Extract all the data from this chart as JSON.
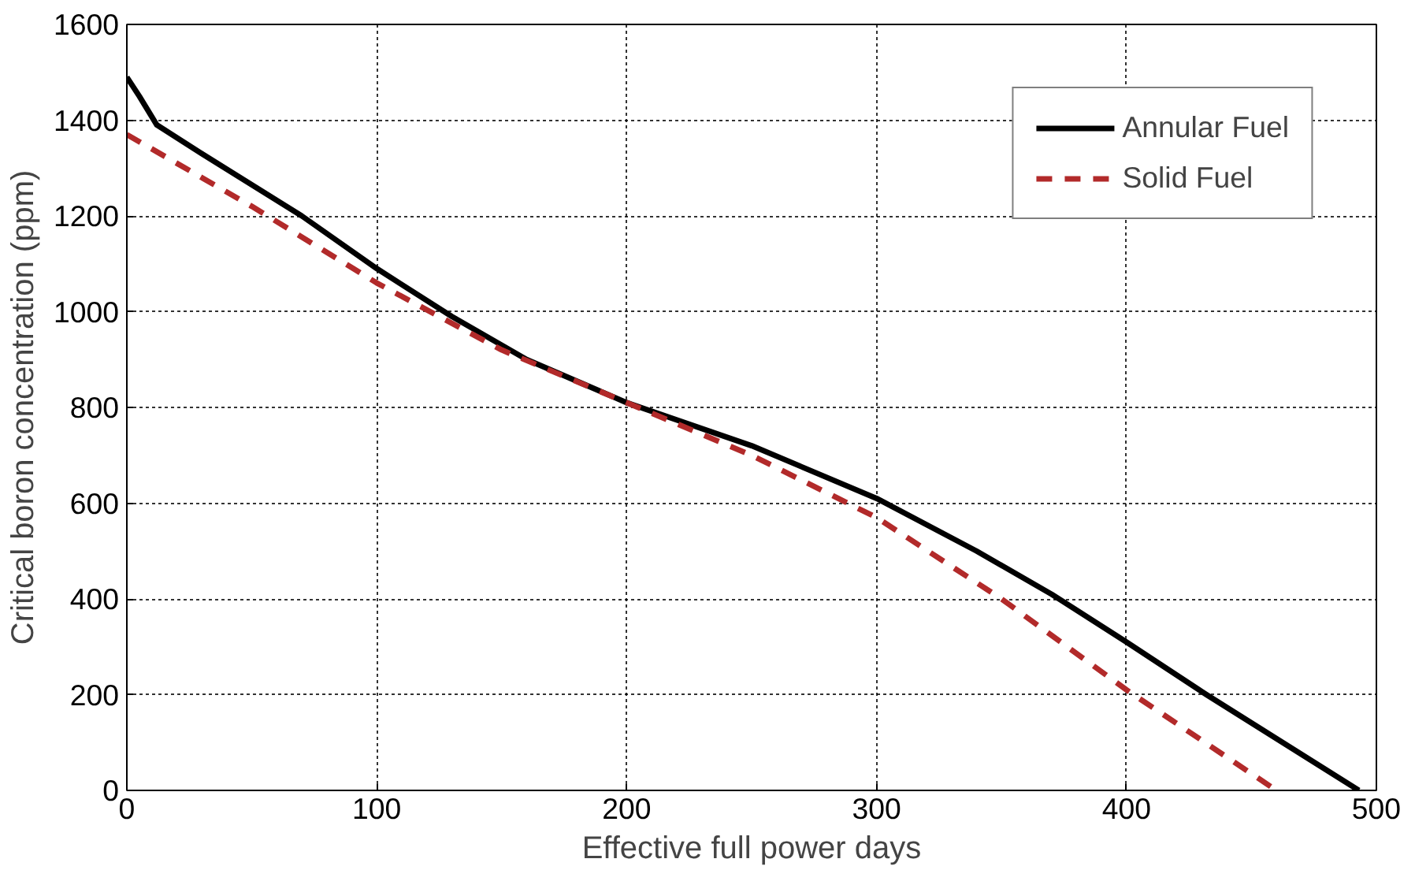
{
  "chart_data": {
    "type": "line",
    "xlabel": "Effective full power days",
    "ylabel": "Critical boron concentration (ppm)",
    "xlim": [
      0,
      500
    ],
    "xticks": [
      0,
      100,
      200,
      300,
      400,
      500
    ],
    "ylim": [
      0,
      1600
    ],
    "yticks": [
      0,
      200,
      400,
      600,
      800,
      1000,
      1200,
      1400,
      1600
    ],
    "grid": true,
    "legend": "top right",
    "series": [
      {
        "name": "Annular Fuel",
        "color": "#000000",
        "line_style": "solid",
        "x": [
          0,
          5,
          12,
          30,
          70,
          100,
          130,
          160,
          200,
          250,
          300,
          340,
          370,
          400,
          432,
          493
        ],
        "values": [
          1490,
          1450,
          1390,
          1330,
          1200,
          1090,
          990,
          900,
          810,
          720,
          610,
          500,
          410,
          310,
          200,
          0
        ]
      },
      {
        "name": "Solid Fuel",
        "color": "#b22a2a",
        "line_style": "dashed",
        "x": [
          0,
          50,
          100,
          150,
          200,
          250,
          300,
          350,
          400,
          460
        ],
        "values": [
          1370,
          1220,
          1060,
          920,
          810,
          700,
          570,
          400,
          210,
          0
        ]
      }
    ]
  }
}
